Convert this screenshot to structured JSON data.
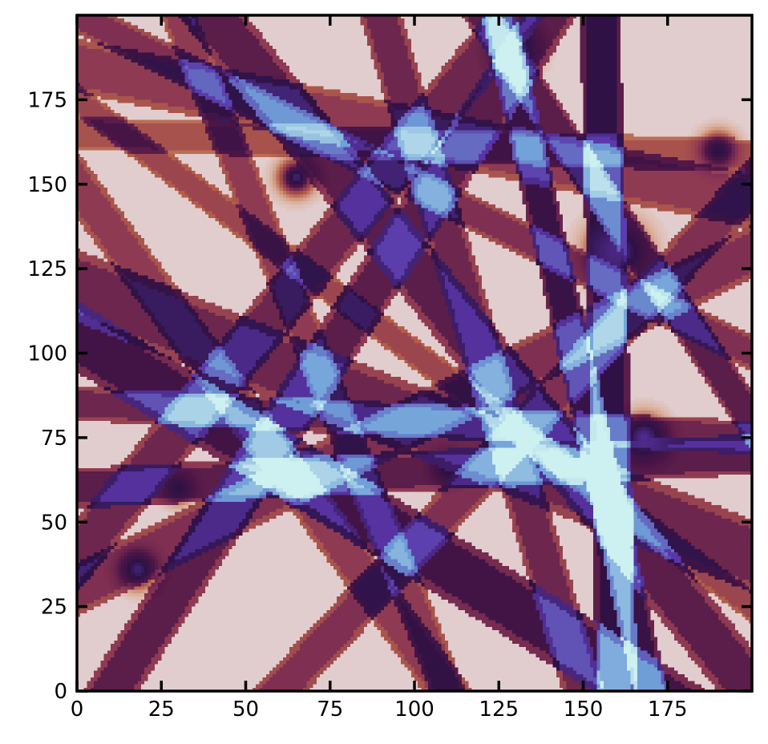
{
  "chart_data": {
    "type": "heatmap",
    "title": "",
    "xlabel": "",
    "ylabel": "",
    "xlim": [
      0,
      200
    ],
    "ylim": [
      0,
      200
    ],
    "x_ticks": [
      0,
      25,
      50,
      75,
      100,
      125,
      150,
      175
    ],
    "y_ticks": [
      0,
      25,
      50,
      75,
      100,
      125,
      150,
      175
    ],
    "x_tick_labels": [
      "0",
      "25",
      "50",
      "75",
      "100",
      "125",
      "150",
      "175"
    ],
    "y_tick_labels": [
      "0",
      "25",
      "50",
      "75",
      "100",
      "125",
      "150",
      "175"
    ],
    "ticks_direction": "in, all four sides",
    "grid": false,
    "colormap": [
      "#e6dde8",
      "#d8a890",
      "#b45f48",
      "#8a3554",
      "#4c1546",
      "#2d1145",
      "#5a35a8",
      "#6f9fd8",
      "#cdf0f0"
    ],
    "grid_size": [
      200,
      200
    ],
    "value_range": [
      0,
      1
    ],
    "bands": [
      {
        "x1": 0,
        "y1": 185,
        "x2": 200,
        "y2": 145,
        "w": 8,
        "v": 0.45
      },
      {
        "x1": 0,
        "y1": 120,
        "x2": 200,
        "y2": 40,
        "w": 10,
        "v": 0.55
      },
      {
        "x1": 0,
        "y1": 105,
        "x2": 170,
        "y2": 0,
        "w": 9,
        "v": 0.7
      },
      {
        "x1": 10,
        "y1": 0,
        "x2": 140,
        "y2": 200,
        "w": 7,
        "v": 0.6
      },
      {
        "x1": 60,
        "y1": 0,
        "x2": 200,
        "y2": 150,
        "w": 6,
        "v": 0.5
      },
      {
        "x1": 0,
        "y1": 40,
        "x2": 130,
        "y2": 200,
        "w": 7,
        "v": 0.55
      },
      {
        "x1": 160,
        "y1": 0,
        "x2": 155,
        "y2": 200,
        "w": 6,
        "v": 0.8
      },
      {
        "x1": 170,
        "y1": 0,
        "x2": 125,
        "y2": 200,
        "w": 5,
        "v": 0.75
      },
      {
        "x1": 0,
        "y1": 60,
        "x2": 200,
        "y2": 70,
        "w": 6,
        "v": 0.6
      },
      {
        "x1": 40,
        "y1": 200,
        "x2": 200,
        "y2": 0,
        "w": 8,
        "v": 0.6
      },
      {
        "x1": 0,
        "y1": 150,
        "x2": 110,
        "y2": 0,
        "w": 6,
        "v": 0.45
      },
      {
        "x1": 0,
        "y1": 30,
        "x2": 200,
        "y2": 130,
        "w": 7,
        "v": 0.5
      },
      {
        "x1": 0,
        "y1": 200,
        "x2": 200,
        "y2": 100,
        "w": 5,
        "v": 0.5
      },
      {
        "x1": 30,
        "y1": 200,
        "x2": 110,
        "y2": 0,
        "w": 5,
        "v": 0.45
      },
      {
        "x1": 90,
        "y1": 200,
        "x2": 150,
        "y2": 0,
        "w": 6,
        "v": 0.55
      },
      {
        "x1": 0,
        "y1": 175,
        "x2": 100,
        "y2": 100,
        "w": 4,
        "v": 0.4
      },
      {
        "x1": 0,
        "y1": 85,
        "x2": 200,
        "y2": 75,
        "w": 5,
        "v": 0.55
      },
      {
        "x1": 120,
        "y1": 200,
        "x2": 200,
        "y2": 80,
        "w": 5,
        "v": 0.6
      },
      {
        "x1": 0,
        "y1": 165,
        "x2": 150,
        "y2": 160,
        "w": 5,
        "v": 0.35
      }
    ],
    "spots": [
      {
        "x": 160,
        "y": 130,
        "r": 8,
        "v": 0.95
      },
      {
        "x": 168,
        "y": 75,
        "r": 6,
        "v": 0.97
      },
      {
        "x": 162,
        "y": 5,
        "r": 5,
        "v": 0.95
      },
      {
        "x": 130,
        "y": 190,
        "r": 6,
        "v": 0.95
      },
      {
        "x": 65,
        "y": 152,
        "r": 5,
        "v": 0.92
      },
      {
        "x": 18,
        "y": 36,
        "r": 5,
        "v": 0.92
      },
      {
        "x": 40,
        "y": 83,
        "r": 4,
        "v": 0.88
      },
      {
        "x": 93,
        "y": 46,
        "r": 4,
        "v": 0.87
      },
      {
        "x": 110,
        "y": 66,
        "r": 4,
        "v": 0.88
      },
      {
        "x": 60,
        "y": 65,
        "r": 4,
        "v": 0.85
      },
      {
        "x": 190,
        "y": 160,
        "r": 5,
        "v": 0.85
      },
      {
        "x": 30,
        "y": 60,
        "r": 4,
        "v": 0.85
      },
      {
        "x": 60,
        "y": 175,
        "r": 4,
        "v": 0.82
      }
    ]
  }
}
